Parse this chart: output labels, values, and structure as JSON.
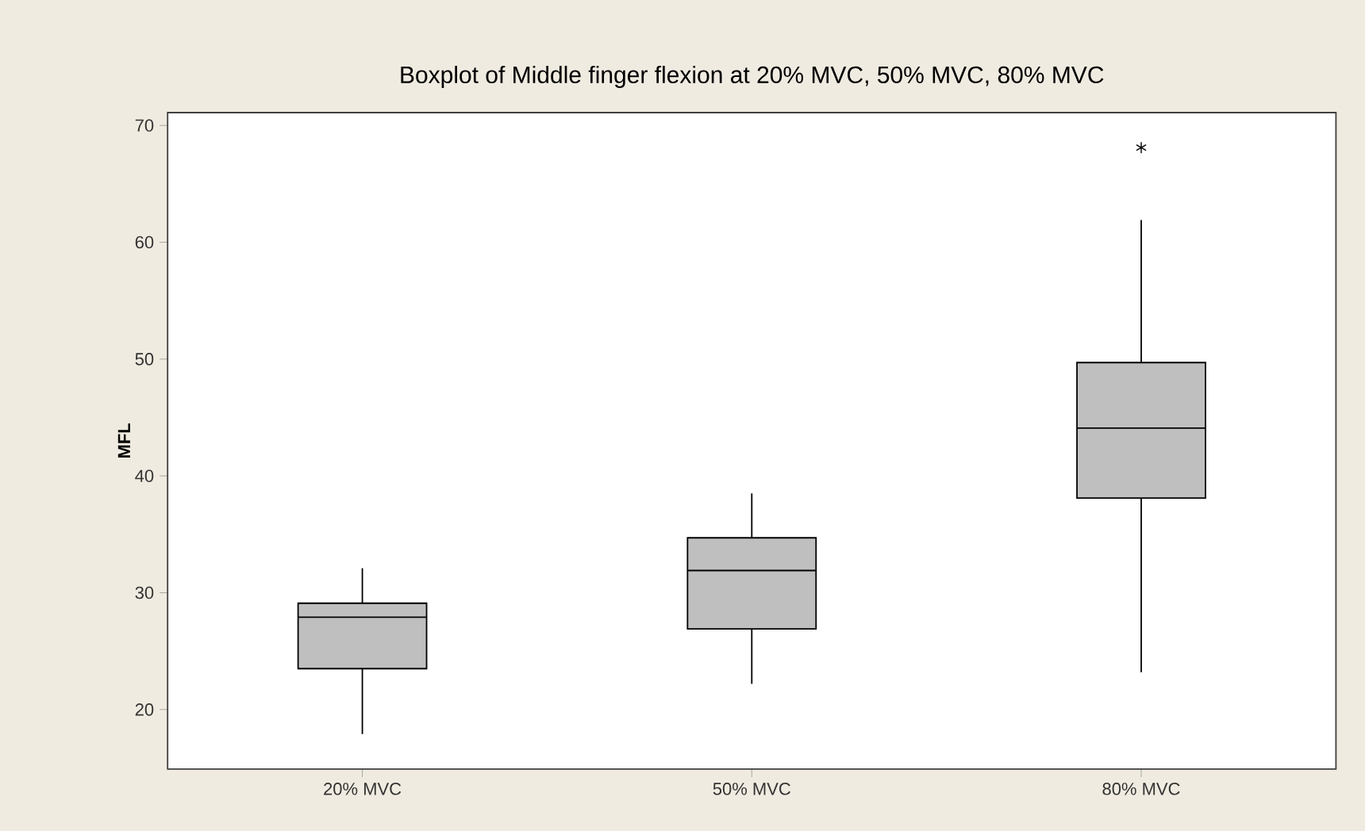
{
  "chart_data": {
    "type": "box",
    "title": "Boxplot of Middle finger flexion at 20% MVC, 50% MVC, 80% MVC",
    "ylabel": "MFL",
    "categories": [
      "20% MVC",
      "50% MVC",
      "80% MVC"
    ],
    "boxes": [
      {
        "low": 17.9,
        "q1": 23.5,
        "median": 27.9,
        "q3": 29.1,
        "high": 32.1
      },
      {
        "low": 22.2,
        "q1": 26.9,
        "median": 31.9,
        "q3": 34.7,
        "high": 38.5
      },
      {
        "low": 23.2,
        "q1": 38.1,
        "median": 44.1,
        "q3": 49.7,
        "high": 61.9,
        "outliers": [
          68.1
        ]
      }
    ],
    "color": "#bfbfbf",
    "ylim": [
      14.9,
      71.1
    ],
    "yticks": [
      20,
      30,
      40,
      50,
      60,
      70
    ]
  }
}
